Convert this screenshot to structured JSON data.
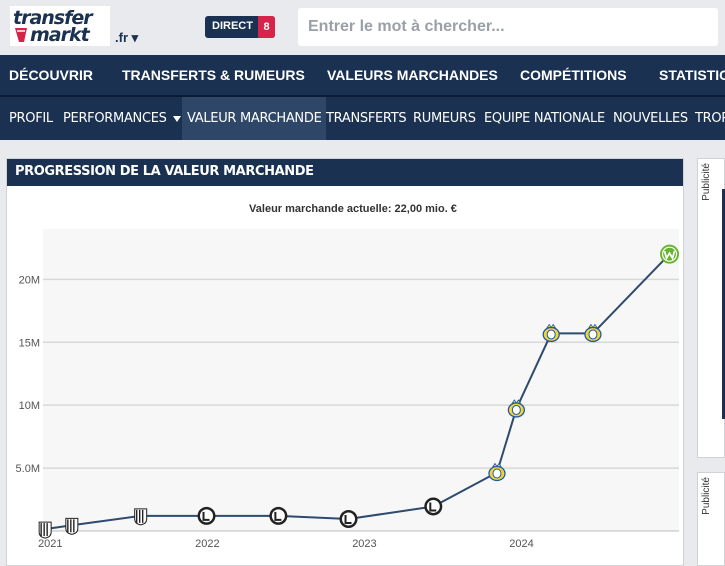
{
  "header": {
    "logo_line1": "transfer",
    "logo_line2": "markt",
    "tld": ".fr ▾",
    "direct_label": "DIRECT",
    "direct_count": "8",
    "search_placeholder": "Entrer le mot à chercher..."
  },
  "main_nav": [
    "DÉCOUVRIR",
    "TRANSFERTS & RUMEURS",
    "VALEURS MARCHANDES",
    "COMPÉTITIONS",
    "STATISTIC"
  ],
  "sub_nav": [
    "PROFIL",
    "PERFORMANCES",
    "VALEUR MARCHANDE",
    "TRANSFERTS",
    "RUMEURS",
    "EQUIPE NATIONALE",
    "NOUVELLES",
    "TROP"
  ],
  "panel": {
    "title": "PROGRESSION DE LA VALEUR MARCHANDE"
  },
  "ads": [
    "Publicité",
    "Publicité"
  ],
  "colors": {
    "navy": "#1a3151",
    "accent_red": "#d6234a",
    "line": "#2e4a6e",
    "plot_bg": "#f7f7f7",
    "grid": "#d8d8d8"
  },
  "chart_data": {
    "type": "line",
    "title": "Valeur marchande actuelle: 22,00 mio. €",
    "xlabel": "",
    "ylabel": "",
    "x_ticks": [
      "2021",
      "2022",
      "2023",
      "2024"
    ],
    "y_ticks": [
      5,
      10,
      15,
      20
    ],
    "y_tick_labels": [
      "5.0M",
      "10M",
      "15M",
      "20M"
    ],
    "ylim": [
      0,
      24
    ],
    "xlim": [
      "2020-12-15",
      "2025-01-01"
    ],
    "grid": true,
    "series": [
      {
        "points": [
          {
            "x": "2020-12-20",
            "y": 0.15,
            "club": "juventus-icon"
          },
          {
            "x": "2021-02-20",
            "y": 0.45,
            "club": "juventus-icon"
          },
          {
            "x": "2021-07-30",
            "y": 1.2,
            "club": "juventus-icon"
          },
          {
            "x": "2021-12-30",
            "y": 1.2,
            "club": "lugano-icon"
          },
          {
            "x": "2022-06-15",
            "y": 1.2,
            "club": "lugano-icon"
          },
          {
            "x": "2022-11-25",
            "y": 0.95,
            "club": "lugano-icon"
          },
          {
            "x": "2023-06-10",
            "y": 1.95,
            "club": "lugano-icon"
          },
          {
            "x": "2023-11-05",
            "y": 4.65,
            "club": "saint-gilloise-icon"
          },
          {
            "x": "2023-12-20",
            "y": 9.7,
            "club": "saint-gilloise-icon"
          },
          {
            "x": "2024-03-10",
            "y": 15.7,
            "club": "saint-gilloise-icon"
          },
          {
            "x": "2024-06-15",
            "y": 15.7,
            "club": "saint-gilloise-icon"
          },
          {
            "x": "2024-12-10",
            "y": 22.0,
            "club": "wolfsburg-icon"
          }
        ]
      }
    ]
  }
}
